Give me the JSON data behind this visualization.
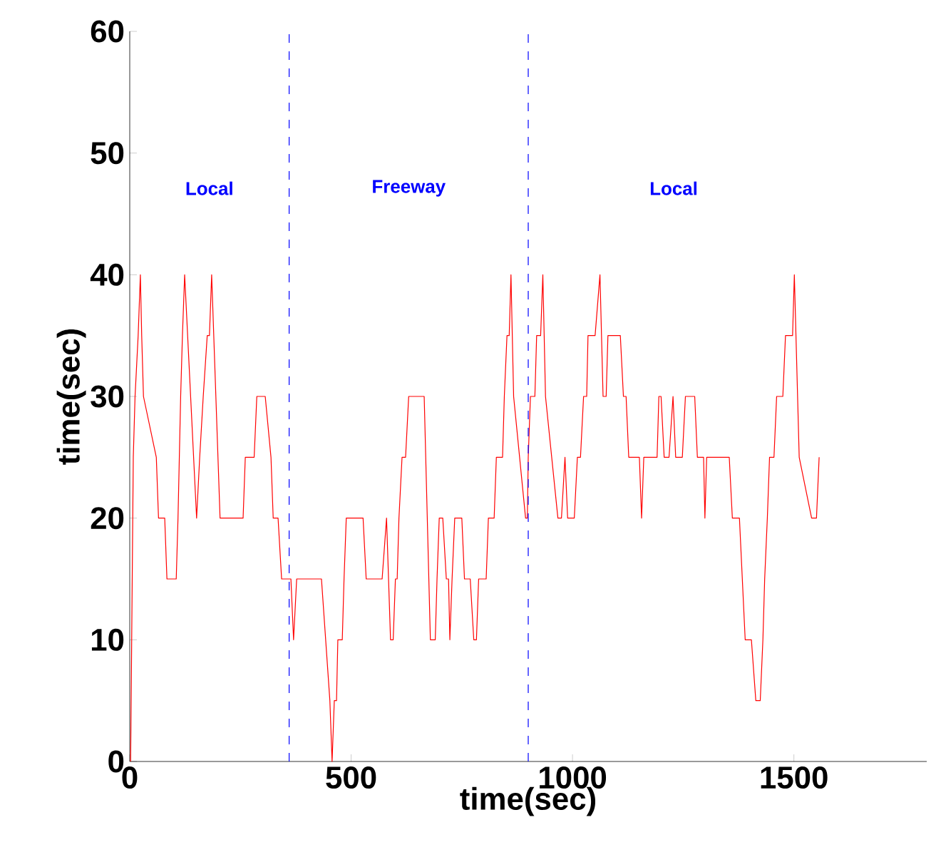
{
  "chart_data": {
    "type": "line",
    "xlabel": "time(sec)",
    "ylabel": "time(sec)",
    "color": "#ff0000",
    "xlim": [
      0,
      1800
    ],
    "ylim": [
      0,
      60
    ],
    "xticks": [
      0,
      500,
      1000,
      1500
    ],
    "yticks": [
      0,
      10,
      20,
      30,
      40,
      50,
      60
    ],
    "x": [
      2,
      8,
      12,
      19,
      24,
      27,
      31,
      60,
      65,
      79,
      84,
      105,
      109,
      115,
      119,
      124,
      151,
      158,
      166,
      175,
      180,
      185,
      204,
      256,
      261,
      281,
      287,
      306,
      319,
      324,
      335,
      343,
      364,
      370,
      377,
      433,
      452,
      457,
      462,
      467,
      470,
      480,
      484,
      489,
      527,
      534,
      570,
      580,
      589,
      595,
      600,
      604,
      608,
      615,
      623,
      630,
      665,
      679,
      690,
      694,
      699,
      707,
      715,
      720,
      723,
      728,
      734,
      750,
      756,
      769,
      777,
      783,
      788,
      805,
      810,
      823,
      828,
      842,
      846,
      852,
      857,
      861,
      867,
      894,
      898,
      900,
      905,
      915,
      919,
      928,
      933,
      939,
      967,
      975,
      983,
      989,
      1004,
      1011,
      1018,
      1025,
      1032,
      1035,
      1051,
      1062,
      1069,
      1076,
      1080,
      1108,
      1115,
      1121,
      1127,
      1151,
      1156,
      1161,
      1191,
      1195,
      1200,
      1207,
      1218,
      1227,
      1233,
      1248,
      1255,
      1276,
      1282,
      1296,
      1299,
      1303,
      1354,
      1361,
      1377,
      1390,
      1404,
      1414,
      1424,
      1430,
      1434,
      1440,
      1445,
      1455,
      1461,
      1475,
      1481,
      1497,
      1501,
      1512,
      1540,
      1551,
      1557
    ],
    "values": [
      0,
      25,
      30,
      35,
      40,
      35,
      30,
      25,
      20,
      20,
      15,
      15,
      20,
      30,
      35,
      40,
      20,
      25,
      30,
      35,
      35,
      40,
      20,
      20,
      25,
      25,
      30,
      30,
      25,
      20,
      20,
      15,
      15,
      10,
      15,
      15,
      5,
      0,
      5,
      5,
      10,
      10,
      15,
      20,
      20,
      15,
      15,
      20,
      10,
      10,
      15,
      15,
      20,
      25,
      25,
      30,
      30,
      10,
      10,
      15,
      20,
      20,
      15,
      15,
      10,
      15,
      20,
      20,
      15,
      15,
      10,
      10,
      15,
      15,
      20,
      20,
      25,
      25,
      30,
      35,
      35,
      40,
      30,
      20,
      20,
      25,
      30,
      30,
      35,
      35,
      40,
      30,
      20,
      20,
      25,
      20,
      20,
      25,
      25,
      30,
      30,
      35,
      35,
      40,
      30,
      30,
      35,
      35,
      30,
      30,
      25,
      25,
      20,
      25,
      25,
      30,
      30,
      25,
      25,
      30,
      25,
      25,
      30,
      30,
      25,
      25,
      20,
      25,
      25,
      20,
      20,
      10,
      10,
      5,
      5,
      10,
      15,
      20,
      25,
      25,
      30,
      30,
      35,
      35,
      40,
      25,
      20,
      20,
      25
    ],
    "ref_lines": [
      {
        "axis": "x",
        "value": 360,
        "color": "#0000ff",
        "line_style": "dashed"
      },
      {
        "axis": "x",
        "value": 900,
        "color": "#0000ff",
        "line_style": "dashed"
      }
    ],
    "annotations": [
      "Local",
      "Freeway",
      "Local"
    ]
  }
}
